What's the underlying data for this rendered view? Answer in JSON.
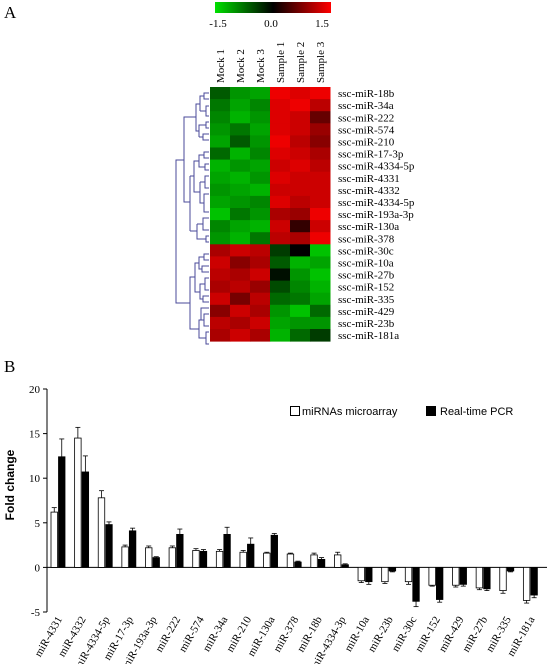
{
  "panels": {
    "a": "A",
    "b": "B"
  },
  "chart_data": [
    {
      "type": "heatmap",
      "color_scale": {
        "min": -1.5,
        "mid": 0.0,
        "max": 1.5,
        "tick_labels": [
          "-1.5",
          "0.0",
          "1.5"
        ],
        "colors": {
          "low": "#00e000",
          "mid": "#000000",
          "high": "#ff0000"
        }
      },
      "columns": [
        "Mock 1",
        "Mock 2",
        "Mock 3",
        "Sample 1",
        "Sample 2",
        "Sample 3"
      ],
      "rows": [
        "ssc-miR-18b",
        "ssc-miR-34a",
        "ssc-miR-222",
        "ssc-miR-574",
        "ssc-miR-210",
        "ssc-miR-17-3p",
        "ssc-miR-4334-5p",
        "ssc-miR-4331",
        "ssc-miR-4332",
        "ssc-miR-4334-5p",
        "ssc-miR-193a-3p",
        "ssc-miR-130a",
        "ssc-miR-378",
        "ssc-miR-30c",
        "ssc-miR-10a",
        "ssc-miR-27b",
        "ssc-miR-152",
        "ssc-miR-335",
        "ssc-miR-429",
        "ssc-miR-23b",
        "ssc-miR-181a"
      ],
      "values": [
        [
          -0.6,
          -1.0,
          -1.1,
          1.4,
          1.3,
          1.4
        ],
        [
          -0.8,
          -1.1,
          -0.9,
          1.3,
          1.4,
          1.1
        ],
        [
          -0.9,
          -1.2,
          -1.0,
          1.3,
          1.2,
          0.6
        ],
        [
          -1.0,
          -0.8,
          -1.1,
          1.3,
          1.2,
          0.9
        ],
        [
          -1.1,
          -0.6,
          -1.0,
          1.4,
          1.1,
          0.8
        ],
        [
          -0.7,
          -1.2,
          -0.9,
          1.3,
          1.2,
          1.0
        ],
        [
          -1.2,
          -1.0,
          -1.1,
          1.2,
          1.3,
          1.1
        ],
        [
          -1.1,
          -1.2,
          -1.0,
          1.3,
          1.2,
          1.2
        ],
        [
          -1.0,
          -1.1,
          -1.2,
          1.2,
          1.2,
          1.2
        ],
        [
          -1.1,
          -1.0,
          -0.9,
          1.3,
          1.1,
          1.2
        ],
        [
          -1.3,
          -0.8,
          -1.0,
          1.0,
          0.9,
          1.4
        ],
        [
          -0.9,
          -1.1,
          -1.2,
          1.2,
          0.3,
          1.2
        ],
        [
          -1.0,
          -1.2,
          -0.8,
          1.1,
          1.0,
          1.4
        ],
        [
          1.0,
          1.2,
          1.1,
          -0.4,
          0.0,
          -1.3
        ],
        [
          1.2,
          0.8,
          1.0,
          -0.6,
          -1.2,
          -1.1
        ],
        [
          1.1,
          1.0,
          1.2,
          -0.1,
          -1.0,
          -1.3
        ],
        [
          1.0,
          1.1,
          0.9,
          -0.5,
          -0.9,
          -1.2
        ],
        [
          1.2,
          0.7,
          1.1,
          -0.7,
          -0.8,
          -1.1
        ],
        [
          0.8,
          1.2,
          1.0,
          -1.0,
          -1.3,
          -0.7
        ],
        [
          1.1,
          1.0,
          1.2,
          -1.1,
          -1.0,
          -1.0
        ],
        [
          1.0,
          1.2,
          1.0,
          -1.2,
          -0.7,
          -0.4
        ]
      ]
    },
    {
      "type": "bar",
      "ylabel": "Fold change",
      "ylim": [
        -5,
        20
      ],
      "yticks": [
        "20",
        "15",
        "10",
        "5",
        "0",
        "-5"
      ],
      "categories": [
        "miR-4331",
        "miR-4332",
        "miR-4334-5p",
        "miR-17-3p",
        "miR-193a-3p",
        "miR-222",
        "miR-574",
        "miR-34a",
        "miR-210",
        "miR-130a",
        "miR-378",
        "miR-18b",
        "miR-4334-3p",
        "miR-10a",
        "miR-23b",
        "miR-30c",
        "miR-152",
        "miR-429",
        "miR-27b",
        "miR-335",
        "miR-181a"
      ],
      "legend_position": "top-right",
      "series": [
        {
          "name": "miRNAs microarray",
          "color": "#ffffff",
          "values": [
            6.2,
            14.5,
            7.8,
            2.3,
            2.2,
            2.2,
            1.9,
            1.8,
            1.7,
            1.6,
            1.5,
            1.4,
            1.4,
            -1.5,
            -1.6,
            -1.6,
            -2.0,
            -2.0,
            -2.3,
            -2.6,
            -3.7
          ],
          "errors": [
            0.5,
            1.2,
            0.8,
            0.2,
            0.2,
            0.2,
            0.2,
            0.2,
            0.2,
            0.1,
            0.1,
            0.2,
            0.3,
            0.2,
            0.2,
            0.3,
            0.1,
            0.2,
            0.2,
            0.3,
            0.3
          ]
        },
        {
          "name": "Real-time PCR",
          "color": "#000000",
          "values": [
            12.4,
            10.7,
            4.8,
            4.1,
            1.1,
            3.7,
            1.8,
            3.7,
            2.6,
            3.6,
            0.6,
            0.9,
            0.3,
            -1.6,
            -0.4,
            -3.8,
            -3.6,
            -1.9,
            -2.4,
            -0.4,
            -3.1
          ],
          "errors": [
            2.0,
            1.8,
            0.3,
            0.3,
            0.1,
            0.6,
            0.2,
            0.8,
            0.7,
            0.2,
            0.1,
            0.2,
            0.1,
            0.3,
            0.1,
            0.6,
            0.3,
            0.2,
            0.2,
            0.1,
            0.3
          ]
        }
      ]
    }
  ]
}
